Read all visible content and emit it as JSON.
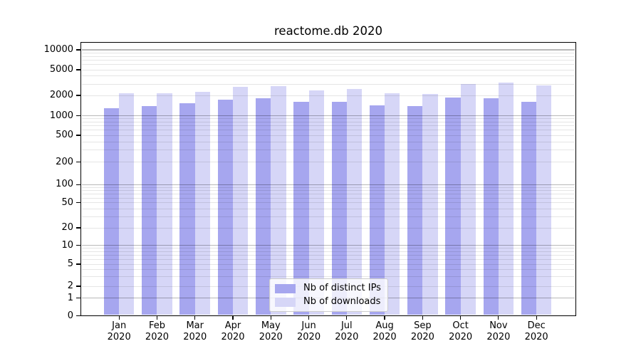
{
  "chart_data": {
    "type": "bar",
    "title": "reactome.db 2020",
    "xlabel": "",
    "ylabel": "",
    "categories": [
      "Jan",
      "Feb",
      "Mar",
      "Apr",
      "May",
      "Jun",
      "Jul",
      "Aug",
      "Sep",
      "Oct",
      "Nov",
      "Dec"
    ],
    "x_tick_second_line": "2020",
    "series": [
      {
        "name": "Nb of distinct IPs",
        "color": "#a6a6ef",
        "values": [
          1300,
          1390,
          1520,
          1730,
          1830,
          1600,
          1620,
          1440,
          1380,
          1870,
          1830,
          1610
        ]
      },
      {
        "name": "Nb of downloads",
        "color": "#d6d6f7",
        "values": [
          2180,
          2140,
          2250,
          2730,
          2770,
          2420,
          2520,
          2160,
          2120,
          3030,
          3160,
          2860
        ]
      }
    ],
    "yscale": "symlog",
    "yticks": [
      0,
      1,
      2,
      5,
      10,
      20,
      50,
      100,
      200,
      500,
      1000,
      2000,
      5000,
      10000
    ],
    "ylim": [
      0,
      12800
    ],
    "grid": true,
    "legend_position": "lower center"
  },
  "colors": {
    "grid_major": "rgba(0,0,0,0.28)",
    "grid_minor": "rgba(0,0,0,0.10)",
    "spine": "#000000"
  }
}
